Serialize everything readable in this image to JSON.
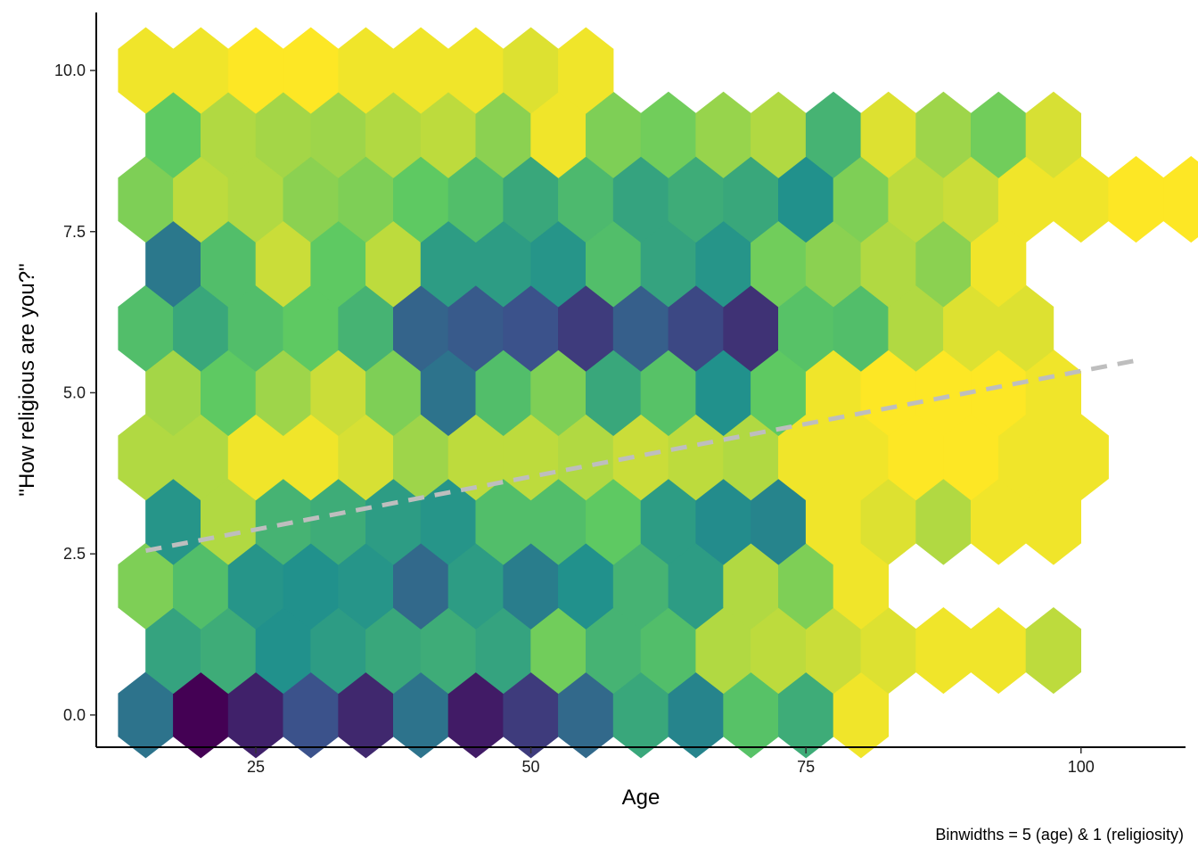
{
  "chart_data": {
    "type": "hexbin",
    "xlabel": "Age",
    "ylabel": "\"How religious are you?\"",
    "caption": "Binwidths = 5 (age) & 1 (religiosity)",
    "xlim": [
      10.5,
      109.5
    ],
    "ylim": [
      -0.5,
      10.9
    ],
    "x_ticks": [
      25,
      50,
      75,
      100
    ],
    "x_tick_labels": [
      "25",
      "50",
      "75",
      "100"
    ],
    "y_ticks": [
      0,
      2.5,
      5,
      7.5,
      10
    ],
    "y_tick_labels": [
      "0.0",
      "2.5",
      "5.0",
      "7.5",
      "10.0"
    ],
    "binwidth": {
      "age": 5,
      "religiosity": 1
    },
    "color_scale": {
      "name": "viridis",
      "stops": [
        "#440154",
        "#3b528b",
        "#21918c",
        "#5ec962",
        "#fde725"
      ],
      "note": "value = relative count, 0 = lowest count (yellow), 1 = highest count (dark purple)"
    },
    "trend_line": {
      "style": "dashed",
      "color": "#bebebe",
      "x": [
        15,
        105
      ],
      "y": [
        2.55,
        5.5
      ]
    },
    "hex_rows": [
      {
        "y": 0,
        "x_start": 15,
        "values": [
          0.62,
          1.0,
          0.9,
          0.75,
          0.88,
          0.62,
          0.92,
          0.82,
          0.66,
          0.4,
          0.55,
          0.28,
          0.38,
          0.02
        ]
      },
      {
        "y": 1,
        "x_start": 17.5,
        "values": [
          0.42,
          0.38,
          0.5,
          0.45,
          0.4,
          0.38,
          0.42,
          0.22,
          0.35,
          0.3,
          0.12,
          0.1,
          0.08,
          0.05,
          0.02,
          0.02,
          0.1
        ]
      },
      {
        "y": 2,
        "x_start": 15,
        "values": [
          0.2,
          0.3,
          0.48,
          0.5,
          0.48,
          0.66,
          0.45,
          0.58,
          0.5,
          0.35,
          0.45,
          0.12,
          0.2,
          0.02
        ]
      },
      {
        "y": 3,
        "x_start": 17.5,
        "values": [
          0.48,
          0.12,
          0.35,
          0.38,
          0.45,
          0.48,
          0.3,
          0.3,
          0.25,
          0.45,
          0.52,
          0.55,
          0.02,
          0.05,
          0.12,
          0.02,
          0.02
        ]
      },
      {
        "y": 4,
        "x_start": 15,
        "values": [
          0.12,
          0.12,
          0.02,
          0.02,
          0.06,
          0.15,
          0.1,
          0.1,
          0.12,
          0.08,
          0.1,
          0.12,
          0.02,
          0.02,
          0.0,
          0.0,
          0.02,
          0.02
        ]
      },
      {
        "y": 5,
        "x_start": 17.5,
        "values": [
          0.14,
          0.25,
          0.15,
          0.08,
          0.2,
          0.62,
          0.3,
          0.2,
          0.4,
          0.28,
          0.5,
          0.25,
          0.02,
          0.0,
          0.0,
          0.0,
          0.02
        ]
      },
      {
        "y": 6,
        "x_start": 15,
        "values": [
          0.3,
          0.4,
          0.3,
          0.25,
          0.35,
          0.68,
          0.72,
          0.75,
          0.82,
          0.7,
          0.78,
          0.85,
          0.28,
          0.3,
          0.12,
          0.05,
          0.05
        ]
      },
      {
        "y": 7,
        "x_start": 17.5,
        "values": [
          0.6,
          0.3,
          0.08,
          0.25,
          0.1,
          0.45,
          0.45,
          0.48,
          0.3,
          0.42,
          0.48,
          0.22,
          0.18,
          0.12,
          0.18,
          0.02
        ]
      },
      {
        "y": 8,
        "x_start": 15,
        "values": [
          0.2,
          0.1,
          0.12,
          0.18,
          0.2,
          0.25,
          0.3,
          0.4,
          0.32,
          0.42,
          0.38,
          0.4,
          0.5,
          0.2,
          0.1,
          0.08,
          0.02,
          0.02,
          0.0,
          0.0,
          0.0,
          0.0,
          0.0,
          0.0,
          0.02
        ]
      },
      {
        "y": 9,
        "x_start": 17.5,
        "values": [
          0.25,
          0.12,
          0.14,
          0.15,
          0.12,
          0.1,
          0.18,
          0.02,
          0.2,
          0.22,
          0.16,
          0.12,
          0.35,
          0.05,
          0.15,
          0.22,
          0.06
        ]
      },
      {
        "y": 10,
        "x_start": 15,
        "values": [
          0.02,
          0.02,
          0.0,
          0.0,
          0.02,
          0.02,
          0.02,
          0.05,
          0.02
        ]
      }
    ]
  }
}
